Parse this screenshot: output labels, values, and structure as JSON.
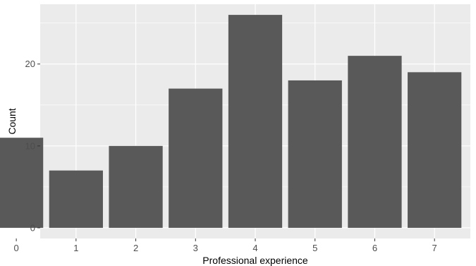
{
  "chart_data": {
    "type": "bar",
    "categories": [
      "0",
      "1",
      "2",
      "3",
      "4",
      "5",
      "6",
      "7"
    ],
    "values": [
      11,
      7,
      10,
      17,
      26,
      18,
      21,
      19
    ],
    "xlabel": "Professional experience",
    "ylabel": "Count",
    "ylim": [
      -1.3,
      27.3
    ],
    "yticks": [
      0,
      10,
      20
    ],
    "grid": true,
    "colors": {
      "panel": "#ebebeb",
      "gridline": "#ffffff",
      "bar": "#595959",
      "tick": "#333333",
      "tick_label": "#4d4d4d"
    }
  }
}
